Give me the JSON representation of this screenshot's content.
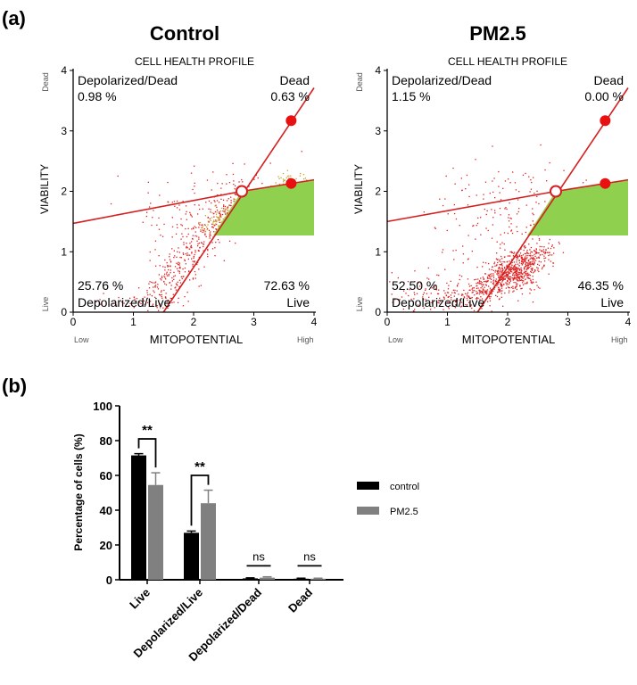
{
  "figure": {
    "panel_a_label": "(a)",
    "panel_b_label": "(b)"
  },
  "chart_data": [
    {
      "type": "scatter",
      "heading": "Control",
      "title": "CELL HEALTH PROFILE",
      "xlabel": "MITOPOTENTIAL",
      "ylabel": "VIABILITY",
      "x_low_label": "Low",
      "x_high_label": "High",
      "y_low_label": "Live",
      "y_high_label": "Dead",
      "xlim": [
        0,
        4
      ],
      "ylim": [
        0,
        4
      ],
      "xticks": [
        0,
        1,
        2,
        3,
        4
      ],
      "yticks": [
        0,
        1,
        2,
        3,
        4
      ],
      "quadrants": {
        "top_left_name": "Depolarized/Dead",
        "top_left_value": "0.98 %",
        "top_right_name": "Dead",
        "top_right_value": "0.63 %",
        "bottom_left_name": "Depolarized/Live",
        "bottom_left_value": "25.76 %",
        "bottom_right_name": "Live",
        "bottom_right_value": "72.63 %"
      },
      "gate_center": [
        2.8,
        2.0
      ],
      "gate_handles": [
        [
          3.62,
          3.17
        ],
        [
          3.62,
          2.13
        ]
      ],
      "gate_line_left_y_at_x0": 1.47,
      "gate_line_vertical_x_at_y0": 1.5,
      "live_region_ymin": 1.27,
      "point_color": "#e02020",
      "gate_color": "#d42020",
      "live_fill": "#8fd14f"
    },
    {
      "type": "scatter",
      "heading": "PM2.5",
      "title": "CELL HEALTH PROFILE",
      "xlabel": "MITOPOTENTIAL",
      "ylabel": "VIABILITY",
      "x_low_label": "Low",
      "x_high_label": "High",
      "y_low_label": "Live",
      "y_high_label": "Dead",
      "xlim": [
        0,
        4
      ],
      "ylim": [
        0,
        4
      ],
      "xticks": [
        0,
        1,
        2,
        3,
        4
      ],
      "yticks": [
        0,
        1,
        2,
        3,
        4
      ],
      "quadrants": {
        "top_left_name": "Depolarized/Dead",
        "top_left_value": "1.15 %",
        "top_right_name": "Dead",
        "top_right_value": "0.00 %",
        "bottom_left_name": "Depolarized/Live",
        "bottom_left_value": "52.50 %",
        "bottom_right_name": "Live",
        "bottom_right_value": "46.35 %"
      },
      "gate_center": [
        2.8,
        2.0
      ],
      "gate_handles": [
        [
          3.62,
          3.17
        ],
        [
          3.62,
          2.13
        ]
      ],
      "gate_line_left_y_at_x0": 1.5,
      "gate_line_vertical_x_at_y0": 1.5,
      "live_region_ymin": 1.27,
      "point_color": "#e02020",
      "gate_color": "#d42020",
      "live_fill": "#8fd14f"
    },
    {
      "type": "bar",
      "ylabel": "Percentage of cells (%)",
      "ylim": [
        0,
        100
      ],
      "yticks": [
        0,
        20,
        40,
        60,
        80,
        100
      ],
      "categories": [
        "Live",
        "Depolarized/Live",
        "Depolarized/Dead",
        "Dead"
      ],
      "series": [
        {
          "name": "control",
          "color": "#000000",
          "values": [
            71.5,
            27,
            0.8,
            0.6
          ],
          "errors": [
            1,
            1,
            0.3,
            0.3
          ]
        },
        {
          "name": "PM2.5",
          "color": "#808080",
          "values": [
            54.5,
            44,
            1.2,
            0.6
          ],
          "errors": [
            7,
            7.5,
            0.5,
            0.3
          ]
        }
      ],
      "significance": [
        {
          "category_index": 0,
          "label": "**"
        },
        {
          "category_index": 1,
          "label": "**"
        },
        {
          "category_index": 2,
          "label": "ns"
        },
        {
          "category_index": 3,
          "label": "ns"
        }
      ],
      "legend_position": "right"
    }
  ]
}
